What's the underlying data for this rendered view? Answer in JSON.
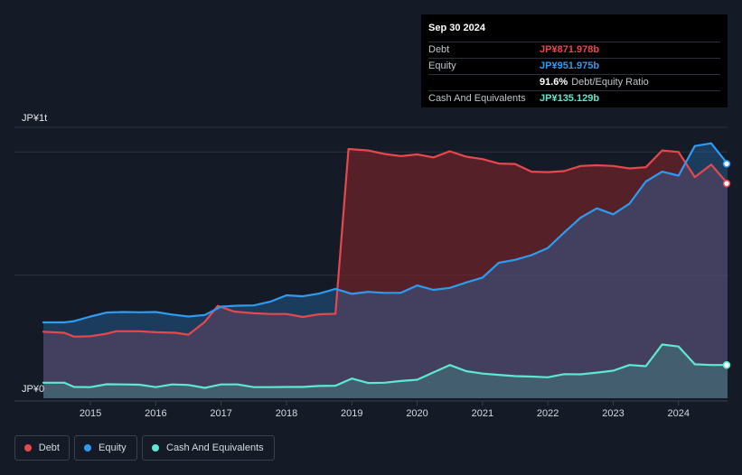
{
  "tooltip": {
    "date": "Sep 30 2024",
    "rows": [
      {
        "label": "Debt",
        "value": "JP¥871.978b",
        "color": "#e5484d"
      },
      {
        "label": "Equity",
        "value": "JP¥951.975b",
        "color": "#2f9bf0"
      },
      {
        "label": "",
        "value": "91.6%",
        "sub": "Debt/Equity Ratio",
        "color": "#ffffff"
      },
      {
        "label": "Cash And Equivalents",
        "value": "JP¥135.129b",
        "color": "#5ee8cf"
      }
    ]
  },
  "legend": {
    "items": [
      {
        "label": "Debt",
        "color": "#e5484d"
      },
      {
        "label": "Equity",
        "color": "#2f9bf0"
      },
      {
        "label": "Cash And Equivalents",
        "color": "#5ee8cf"
      }
    ]
  },
  "chart_data": {
    "type": "area",
    "unit": "JP¥ billions",
    "y_tick_labels": [
      "JP¥1t",
      "JP¥0"
    ],
    "x_tick_labels": [
      "2015",
      "2016",
      "2017",
      "2018",
      "2019",
      "2020",
      "2021",
      "2022",
      "2023",
      "2024"
    ],
    "xlim": [
      2014.28,
      2024.75
    ],
    "ylim": [
      0,
      1100
    ],
    "grid": true,
    "legend_position": "bottom-left",
    "series": [
      {
        "name": "Debt",
        "color": "#e5484d",
        "points": [
          [
            2014.28,
            270
          ],
          [
            2014.6,
            266
          ],
          [
            2014.75,
            250
          ],
          [
            2015.0,
            252
          ],
          [
            2015.25,
            262
          ],
          [
            2015.4,
            272
          ],
          [
            2015.75,
            272
          ],
          [
            2016.0,
            268
          ],
          [
            2016.3,
            266
          ],
          [
            2016.5,
            258
          ],
          [
            2016.75,
            310
          ],
          [
            2016.95,
            375
          ],
          [
            2017.2,
            352
          ],
          [
            2017.5,
            345
          ],
          [
            2017.75,
            342
          ],
          [
            2018.0,
            342
          ],
          [
            2018.25,
            330
          ],
          [
            2018.5,
            341
          ],
          [
            2018.75,
            343
          ],
          [
            2018.95,
            1012
          ],
          [
            2019.25,
            1006
          ],
          [
            2019.5,
            992
          ],
          [
            2019.75,
            983
          ],
          [
            2020.0,
            990
          ],
          [
            2020.25,
            978
          ],
          [
            2020.5,
            1003
          ],
          [
            2020.75,
            981
          ],
          [
            2021.0,
            971
          ],
          [
            2021.25,
            953
          ],
          [
            2021.5,
            951
          ],
          [
            2021.75,
            920
          ],
          [
            2022.0,
            918
          ],
          [
            2022.25,
            922
          ],
          [
            2022.5,
            943
          ],
          [
            2022.75,
            946
          ],
          [
            2023.0,
            943
          ],
          [
            2023.25,
            933
          ],
          [
            2023.5,
            938
          ],
          [
            2023.75,
            1006
          ],
          [
            2024.0,
            1000
          ],
          [
            2024.25,
            898
          ],
          [
            2024.5,
            949
          ],
          [
            2024.75,
            872
          ]
        ]
      },
      {
        "name": "Equity",
        "color": "#2f9bf0",
        "points": [
          [
            2014.28,
            308
          ],
          [
            2014.6,
            308
          ],
          [
            2014.75,
            313
          ],
          [
            2015.0,
            332
          ],
          [
            2015.25,
            348
          ],
          [
            2015.5,
            350
          ],
          [
            2015.75,
            349
          ],
          [
            2016.0,
            350
          ],
          [
            2016.25,
            340
          ],
          [
            2016.5,
            332
          ],
          [
            2016.75,
            338
          ],
          [
            2017.0,
            372
          ],
          [
            2017.25,
            376
          ],
          [
            2017.5,
            377
          ],
          [
            2017.75,
            392
          ],
          [
            2018.0,
            418
          ],
          [
            2018.25,
            414
          ],
          [
            2018.5,
            425
          ],
          [
            2018.75,
            444
          ],
          [
            2019.0,
            424
          ],
          [
            2019.25,
            432
          ],
          [
            2019.5,
            428
          ],
          [
            2019.75,
            428
          ],
          [
            2020.0,
            458
          ],
          [
            2020.25,
            440
          ],
          [
            2020.5,
            448
          ],
          [
            2020.75,
            470
          ],
          [
            2021.0,
            490
          ],
          [
            2021.25,
            550
          ],
          [
            2021.5,
            562
          ],
          [
            2021.75,
            581
          ],
          [
            2022.0,
            610
          ],
          [
            2022.25,
            673
          ],
          [
            2022.5,
            733
          ],
          [
            2022.75,
            771
          ],
          [
            2023.0,
            747
          ],
          [
            2023.25,
            790
          ],
          [
            2023.5,
            880
          ],
          [
            2023.75,
            920
          ],
          [
            2024.0,
            904
          ],
          [
            2024.25,
            1024
          ],
          [
            2024.5,
            1035
          ],
          [
            2024.75,
            952
          ]
        ]
      },
      {
        "name": "Cash And Equivalents",
        "color": "#5ee8cf",
        "points": [
          [
            2014.28,
            63
          ],
          [
            2014.6,
            63
          ],
          [
            2014.75,
            46
          ],
          [
            2015.0,
            45
          ],
          [
            2015.25,
            57
          ],
          [
            2015.5,
            56
          ],
          [
            2015.75,
            55
          ],
          [
            2016.0,
            45
          ],
          [
            2016.25,
            56
          ],
          [
            2016.5,
            54
          ],
          [
            2016.75,
            42
          ],
          [
            2017.0,
            56
          ],
          [
            2017.25,
            56
          ],
          [
            2017.5,
            45
          ],
          [
            2017.75,
            45
          ],
          [
            2018.0,
            46
          ],
          [
            2018.25,
            46
          ],
          [
            2018.5,
            50
          ],
          [
            2018.75,
            51
          ],
          [
            2019.0,
            80
          ],
          [
            2019.25,
            62
          ],
          [
            2019.5,
            63
          ],
          [
            2019.75,
            70
          ],
          [
            2020.0,
            75
          ],
          [
            2020.25,
            105
          ],
          [
            2020.5,
            135
          ],
          [
            2020.75,
            110
          ],
          [
            2021.0,
            100
          ],
          [
            2021.25,
            95
          ],
          [
            2021.5,
            90
          ],
          [
            2021.75,
            88
          ],
          [
            2022.0,
            85
          ],
          [
            2022.25,
            98
          ],
          [
            2022.5,
            97
          ],
          [
            2022.75,
            104
          ],
          [
            2023.0,
            112
          ],
          [
            2023.25,
            135
          ],
          [
            2023.5,
            130
          ],
          [
            2023.75,
            218
          ],
          [
            2024.0,
            210
          ],
          [
            2024.25,
            138
          ],
          [
            2024.5,
            135
          ],
          [
            2024.75,
            135
          ]
        ]
      }
    ]
  }
}
